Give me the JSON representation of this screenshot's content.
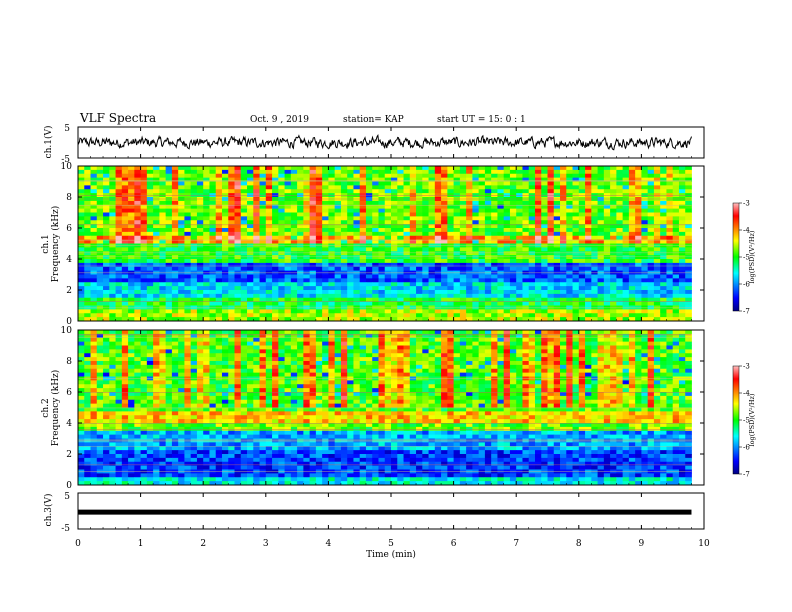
{
  "header": {
    "title": "VLF Spectra",
    "date": "Oct. 9 , 2019",
    "station": "station= KAP",
    "start": "start UT = 15: 0 : 1"
  },
  "chart_data": [
    {
      "type": "line",
      "panel": "ch1-waveform",
      "ylabel": "ch.1(V)",
      "xlim": [
        0,
        10
      ],
      "ylim": [
        -5,
        5
      ],
      "yticks": [
        "5",
        "-5"
      ],
      "description_of_series": "noisy waveform oscillating around 0 V with amplitude about ±1 V from 0 to 9.8 min",
      "series": [
        {
          "x_range": [
            0,
            9.8
          ],
          "mean": 0,
          "amplitude_approx": 1.0
        }
      ],
      "color": "#000000"
    },
    {
      "type": "heatmap",
      "panel": "ch1-spectrogram",
      "ylabel": "ch.1 Frequency (kHz)",
      "xlim": [
        0,
        10
      ],
      "x_data_end": 9.8,
      "ylim": [
        0,
        10
      ],
      "yticks": [
        "0",
        "2",
        "4",
        "6",
        "8",
        "10"
      ],
      "colorbar": {
        "label": "log(PSD)(V²/Hz)",
        "range": [
          -7,
          -3
        ],
        "ticks": [
          "-3",
          "-4",
          "-5",
          "-6",
          "-7"
        ]
      },
      "bands_khz": [
        {
          "from": 0,
          "to": 0.7,
          "level": -4.6
        },
        {
          "from": 0.7,
          "to": 1.6,
          "level": -5.1
        },
        {
          "from": 1.6,
          "to": 2.4,
          "level": -5.7
        },
        {
          "from": 2.4,
          "to": 3.8,
          "level": -6.2
        },
        {
          "from": 3.8,
          "to": 5.0,
          "level": -5.0
        },
        {
          "from": 5.0,
          "to": 5.6,
          "level": -4.1
        },
        {
          "from": 5.6,
          "to": 10,
          "level": -4.8
        }
      ]
    },
    {
      "type": "heatmap",
      "panel": "ch2-spectrogram",
      "ylabel": "ch.2 Frequency (kHz)",
      "xlim": [
        0,
        10
      ],
      "x_data_end": 9.8,
      "ylim": [
        0,
        10
      ],
      "yticks": [
        "0",
        "2",
        "4",
        "6",
        "8",
        "10"
      ],
      "colorbar": {
        "label": "log(PSD)(V²/Hz)",
        "range": [
          -7,
          -3
        ],
        "ticks": [
          "-3",
          "-4",
          "-5",
          "-6",
          "-7"
        ]
      },
      "bands_khz": [
        {
          "from": 0,
          "to": 0.6,
          "level": -5.6
        },
        {
          "from": 0.6,
          "to": 2.2,
          "level": -6.3
        },
        {
          "from": 2.2,
          "to": 3.4,
          "level": -5.9
        },
        {
          "from": 3.4,
          "to": 4.0,
          "level": -4.8
        },
        {
          "from": 4.0,
          "to": 4.8,
          "level": -4.2
        },
        {
          "from": 4.8,
          "to": 10,
          "level": -4.9
        }
      ]
    },
    {
      "type": "line",
      "panel": "ch3-waveform",
      "ylabel": "ch.3(V)",
      "xlabel": "Time (min)",
      "xlim": [
        0,
        10
      ],
      "ylim": [
        -5,
        5
      ],
      "yticks": [
        "5",
        "-5"
      ],
      "xticks": [
        "0",
        "1",
        "2",
        "3",
        "4",
        "5",
        "6",
        "7",
        "8",
        "9",
        "10"
      ],
      "series": [
        {
          "x_range": [
            0,
            9.8
          ],
          "mean": -0.3,
          "amplitude_approx": 0.3
        }
      ],
      "color": "#000000"
    }
  ]
}
